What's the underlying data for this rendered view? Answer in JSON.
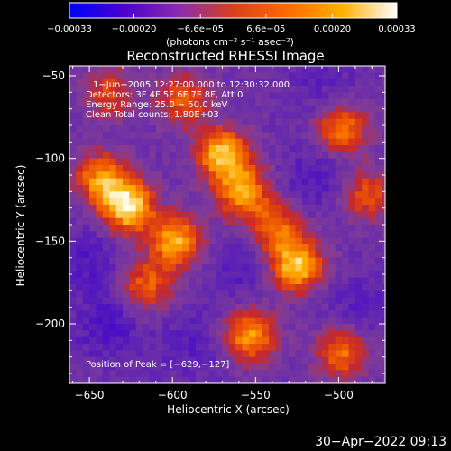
{
  "colorbar": {
    "tick_labels": [
      "−0.00033",
      "−0.00020",
      "−6.6e−05",
      "6.6e−05",
      "0.00020",
      "0.00033"
    ],
    "tick_values": [
      -0.00033,
      -0.0002,
      -6.6e-05,
      6.6e-05,
      0.0002,
      0.00033
    ],
    "range": [
      -0.00033,
      0.00033
    ],
    "units_label": "(photons cm⁻² s⁻¹ asec⁻²)",
    "stops": [
      "#0000ff",
      "#4b00cc",
      "#8b2bb0",
      "#d8401c",
      "#ff6a00",
      "#ffb000",
      "#ffffff"
    ]
  },
  "chart_data": {
    "type": "heatmap",
    "title": "Reconstructed RHESSI Image",
    "xlabel": "Heliocentric X (arcsec)",
    "ylabel": "Heliocentric Y (arcsec)",
    "xlim": [
      -662,
      -472
    ],
    "ylim": [
      -236,
      -44
    ],
    "x_ticks": [
      -650,
      -600,
      -550,
      -500
    ],
    "x_tick_labels": [
      "−650",
      "−600",
      "−550",
      "−500"
    ],
    "y_ticks": [
      -50,
      -100,
      -150,
      -200
    ],
    "y_tick_labels": [
      "−50",
      "−100",
      "−150",
      "−200"
    ],
    "annotations": [
      "1−Jun−2005 12:27:00.000 to 12:30:32.000",
      "Detectors: 3F 4F 5F 6F 7F 8F, Att 0",
      "Energy Range: 25.0 − 50.0 keV",
      "Clean   Total counts: 1.80E+03"
    ],
    "peak_label": "Position of Peak = [−629,−127]",
    "peak": [
      -629,
      -127
    ],
    "sources": [
      {
        "x": -629,
        "y": -127,
        "amp": 1.0
      },
      {
        "x": -645,
        "y": -110,
        "amp": 0.7
      },
      {
        "x": -600,
        "y": -148,
        "amp": 0.8
      },
      {
        "x": -618,
        "y": -175,
        "amp": 0.55
      },
      {
        "x": -572,
        "y": -95,
        "amp": 0.85
      },
      {
        "x": -560,
        "y": -118,
        "amp": 0.75
      },
      {
        "x": -595,
        "y": -62,
        "amp": 0.55
      },
      {
        "x": -527,
        "y": -163,
        "amp": 0.9
      },
      {
        "x": -540,
        "y": -140,
        "amp": 0.6
      },
      {
        "x": -500,
        "y": -80,
        "amp": 0.65
      },
      {
        "x": -485,
        "y": -120,
        "amp": 0.5
      },
      {
        "x": -555,
        "y": -205,
        "amp": 0.75
      },
      {
        "x": -500,
        "y": -215,
        "amp": 0.6
      },
      {
        "x": -640,
        "y": -58,
        "amp": 0.45
      }
    ],
    "negative_regions": [
      {
        "x": -640,
        "y": -200,
        "amp": 0.7
      },
      {
        "x": -652,
        "y": -160,
        "amp": 0.6
      },
      {
        "x": -590,
        "y": -210,
        "amp": 0.5
      },
      {
        "x": -515,
        "y": -110,
        "amp": 0.6
      },
      {
        "x": -560,
        "y": -165,
        "amp": 0.5
      },
      {
        "x": -510,
        "y": -55,
        "amp": 0.4
      },
      {
        "x": -490,
        "y": -190,
        "amp": 0.5
      }
    ]
  },
  "timestamp": "30−Apr−2022 09:13"
}
